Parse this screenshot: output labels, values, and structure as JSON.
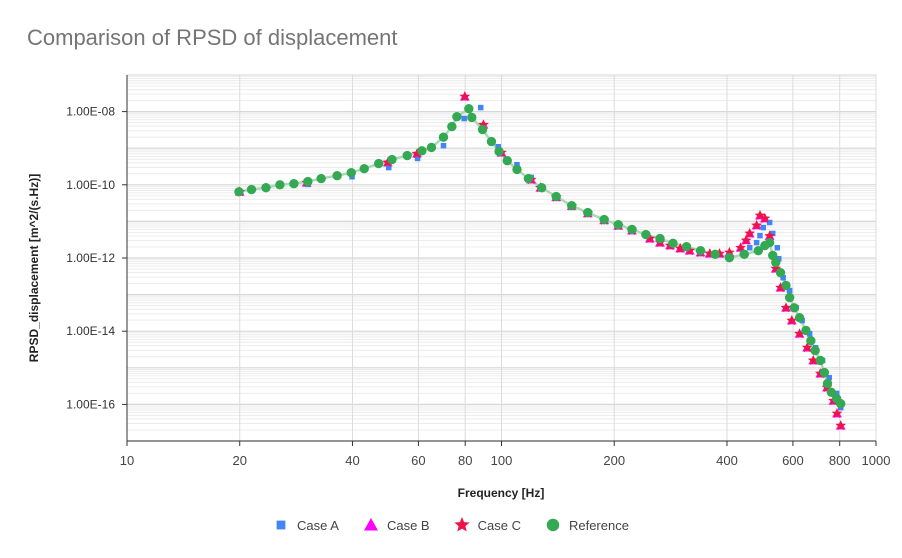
{
  "chart_data": {
    "type": "scatter",
    "title": "Comparison of RPSD of displacement",
    "xlabel": "Frequency [Hz]",
    "ylabel": "RPSD_displacement [m^2/(s.Hz)]",
    "xscale": "log",
    "yscale": "log",
    "xlim": [
      10,
      1000
    ],
    "ylim_log10": [
      -17,
      -7
    ],
    "x_tick_labels": [
      "10",
      "20",
      "40",
      "60",
      "80",
      "100",
      "200",
      "400",
      "600",
      "800",
      "1000"
    ],
    "x_tick_values": [
      10,
      20,
      40,
      60,
      80,
      100,
      200,
      400,
      600,
      800,
      1000
    ],
    "y_tick_labels": [
      "1.00E-08",
      "1.00E-10",
      "1.00E-12",
      "1.00E-14",
      "1.00E-16"
    ],
    "y_tick_log10": [
      -8,
      -10,
      -12,
      -14,
      -16
    ],
    "grid": true,
    "legend_position": "bottom",
    "series": [
      {
        "name": "Case A",
        "marker": "square",
        "color": "#4285f4",
        "x": [
          20,
          30.4,
          39.9,
          50,
          59.7,
          70,
          79.5,
          88,
          98,
          110,
          120,
          128,
          140,
          154,
          170,
          188,
          205,
          223,
          243,
          265,
          287,
          312,
          340,
          372,
          406,
          440,
          460,
          480,
          490,
          500,
          520,
          530,
          545,
          550,
          565,
          588,
          612,
          635,
          665,
          690,
          720,
          750,
          785,
          805
        ],
        "y_log10": [
          -10.22,
          -9.99,
          -9.78,
          -9.53,
          -9.28,
          -8.93,
          -8.19,
          -7.89,
          -8.96,
          -9.45,
          -9.8,
          -10.08,
          -10.33,
          -10.58,
          -10.77,
          -10.96,
          -11.1,
          -11.23,
          -11.37,
          -11.48,
          -11.61,
          -11.7,
          -11.81,
          -11.9,
          -11.97,
          -11.88,
          -11.72,
          -11.58,
          -11.39,
          -11.17,
          -11.03,
          -11.33,
          -11.72,
          -12.02,
          -12.54,
          -12.89,
          -13.36,
          -13.71,
          -14.07,
          -14.45,
          -14.8,
          -15.27,
          -15.7,
          -16.09
        ]
      },
      {
        "name": "Case B",
        "marker": "triangle",
        "color": "#ff00ff",
        "x": [
          20,
          30.2,
          49.7,
          59.5,
          79.8,
          89.5,
          100,
          120,
          127,
          140,
          154,
          170,
          188,
          205,
          223,
          249,
          265,
          282,
          300,
          318,
          340,
          360,
          382,
          406,
          435,
          450,
          460,
          480,
          490,
          505,
          520,
          540,
          556,
          575,
          596,
          625,
          655,
          680,
          710,
          740,
          770,
          787,
          805
        ],
        "y_log10": [
          -10.19,
          -9.94,
          -9.39,
          -9.15,
          -7.59,
          -8.36,
          -9.12,
          -9.86,
          -10.08,
          -10.34,
          -10.58,
          -10.78,
          -10.97,
          -11.12,
          -11.25,
          -11.47,
          -11.58,
          -11.66,
          -11.74,
          -11.8,
          -11.85,
          -11.88,
          -11.88,
          -11.85,
          -11.72,
          -11.52,
          -11.33,
          -11.11,
          -10.84,
          -10.92,
          -11.4,
          -12.29,
          -12.81,
          -13.36,
          -13.71,
          -14.07,
          -14.45,
          -14.8,
          -15.16,
          -15.54,
          -15.9,
          -16.25,
          -16.58
        ]
      },
      {
        "name": "Case C",
        "marker": "star",
        "color": "#f01446",
        "x": [
          20,
          30.2,
          49.7,
          59.5,
          79.8,
          89.5,
          100,
          120,
          127,
          140,
          154,
          170,
          188,
          205,
          223,
          249,
          265,
          282,
          300,
          318,
          340,
          360,
          382,
          406,
          435,
          450,
          460,
          480,
          490,
          505,
          520,
          540,
          556,
          575,
          596,
          625,
          655,
          680,
          710,
          740,
          770,
          787,
          805
        ],
        "y_log10": [
          -10.19,
          -9.94,
          -9.39,
          -9.15,
          -7.59,
          -8.36,
          -9.12,
          -9.86,
          -10.08,
          -10.34,
          -10.58,
          -10.78,
          -10.97,
          -11.12,
          -11.25,
          -11.47,
          -11.58,
          -11.66,
          -11.74,
          -11.8,
          -11.85,
          -11.88,
          -11.88,
          -11.85,
          -11.72,
          -11.52,
          -11.33,
          -11.11,
          -10.84,
          -10.92,
          -11.4,
          -12.29,
          -12.81,
          -13.36,
          -13.71,
          -14.07,
          -14.45,
          -14.8,
          -15.16,
          -15.54,
          -15.9,
          -16.25,
          -16.58
        ]
      },
      {
        "name": "Reference",
        "marker": "circle",
        "color": "#34a853",
        "line_color": "#a8dab5",
        "x": [
          19.9,
          21.5,
          23.5,
          25.6,
          27.9,
          30.4,
          33,
          36.4,
          39.7,
          43,
          47,
          51,
          56,
          61.3,
          65,
          70,
          73.7,
          76,
          81.8,
          83.3,
          89,
          94,
          98.5,
          103.6,
          110,
          118,
          128,
          140,
          154,
          170,
          188,
          205,
          223,
          243,
          265,
          287,
          312,
          340,
          372,
          406,
          445,
          485,
          505,
          520,
          530,
          540,
          556,
          575,
          588,
          605,
          625,
          650,
          670,
          688,
          710,
          728,
          742,
          760,
          785,
          805
        ],
        "y_log10": [
          -10.19,
          -10.13,
          -10.08,
          -10.0,
          -9.97,
          -9.91,
          -9.83,
          -9.75,
          -9.67,
          -9.56,
          -9.42,
          -9.31,
          -9.2,
          -9.07,
          -8.98,
          -8.7,
          -8.41,
          -8.14,
          -7.92,
          -8.16,
          -8.49,
          -8.82,
          -9.09,
          -9.34,
          -9.58,
          -9.83,
          -10.08,
          -10.32,
          -10.57,
          -10.76,
          -10.95,
          -11.09,
          -11.22,
          -11.36,
          -11.47,
          -11.6,
          -11.69,
          -11.8,
          -11.9,
          -11.99,
          -11.9,
          -11.8,
          -11.66,
          -11.58,
          -11.93,
          -12.12,
          -12.4,
          -12.75,
          -13.08,
          -13.36,
          -13.63,
          -13.98,
          -14.26,
          -14.53,
          -14.8,
          -15.13,
          -15.43,
          -15.67,
          -15.84,
          -15.98
        ]
      }
    ]
  }
}
